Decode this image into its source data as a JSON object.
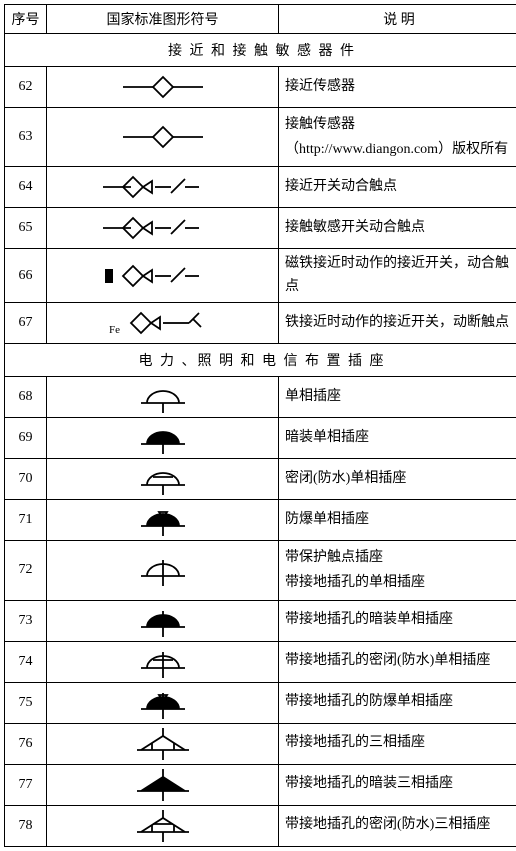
{
  "columns": [
    "序号",
    "国家标准图形符号",
    "说  明"
  ],
  "colors": {
    "border": "#000000",
    "bg": "#ffffff",
    "text": "#000000"
  },
  "sections": [
    {
      "title": "接 近 和 接 触 敏 感 器 件",
      "rows": [
        {
          "seq": "62",
          "desc": "接近传感器",
          "symbol": "diamond-line"
        },
        {
          "seq": "63",
          "desc": "接触传感器\n（http://www.diangon.com）版权所有",
          "symbol": "diamond-open-line"
        },
        {
          "seq": "64",
          "desc": "接近开关动合触点",
          "symbol": "diamond-tri-contact"
        },
        {
          "seq": "65",
          "desc": "接触敏感开关动合触点",
          "symbol": "diamond-open-tri-contact"
        },
        {
          "seq": "66",
          "desc": "磁铁接近时动作的接近开关，动合触点",
          "symbol": "magnet-tri-contact"
        },
        {
          "seq": "67",
          "desc": "铁接近时动作的接近开关，动断触点",
          "symbol": "fe-tri-break",
          "label": "Fe"
        }
      ]
    },
    {
      "title": "电 力 、照 明 和 电 信 布 置 插 座",
      "rows": [
        {
          "seq": "68",
          "desc": "单相插座",
          "symbol": "arc-open"
        },
        {
          "seq": "69",
          "desc": "暗装单相插座",
          "symbol": "arc-filled"
        },
        {
          "seq": "70",
          "desc": "密闭(防水)单相插座",
          "symbol": "arc-open-hbar"
        },
        {
          "seq": "71",
          "desc": "防爆单相插座",
          "symbol": "arc-filled-tri"
        },
        {
          "seq": "72",
          "desc": "带保护触点插座\n带接地插孔的单相插座",
          "symbol": "arc-open-vbar"
        },
        {
          "seq": "73",
          "desc": "带接地插孔的暗装单相插座",
          "symbol": "arc-filled-vbar"
        },
        {
          "seq": "74",
          "desc": "带接地插孔的密闭(防水)单相插座",
          "symbol": "arc-open-vbar-hbar"
        },
        {
          "seq": "75",
          "desc": "带接地插孔的防爆单相插座",
          "symbol": "arc-filled-vbar-tri"
        },
        {
          "seq": "76",
          "desc": "带接地插孔的三相插座",
          "symbol": "triple-arc-open"
        },
        {
          "seq": "77",
          "desc": "带接地插孔的暗装三相插座",
          "symbol": "triple-arc-filled"
        },
        {
          "seq": "78",
          "desc": "带接地插孔的密闭(防水)三相插座",
          "symbol": "triple-arc-open-bar"
        }
      ]
    }
  ]
}
